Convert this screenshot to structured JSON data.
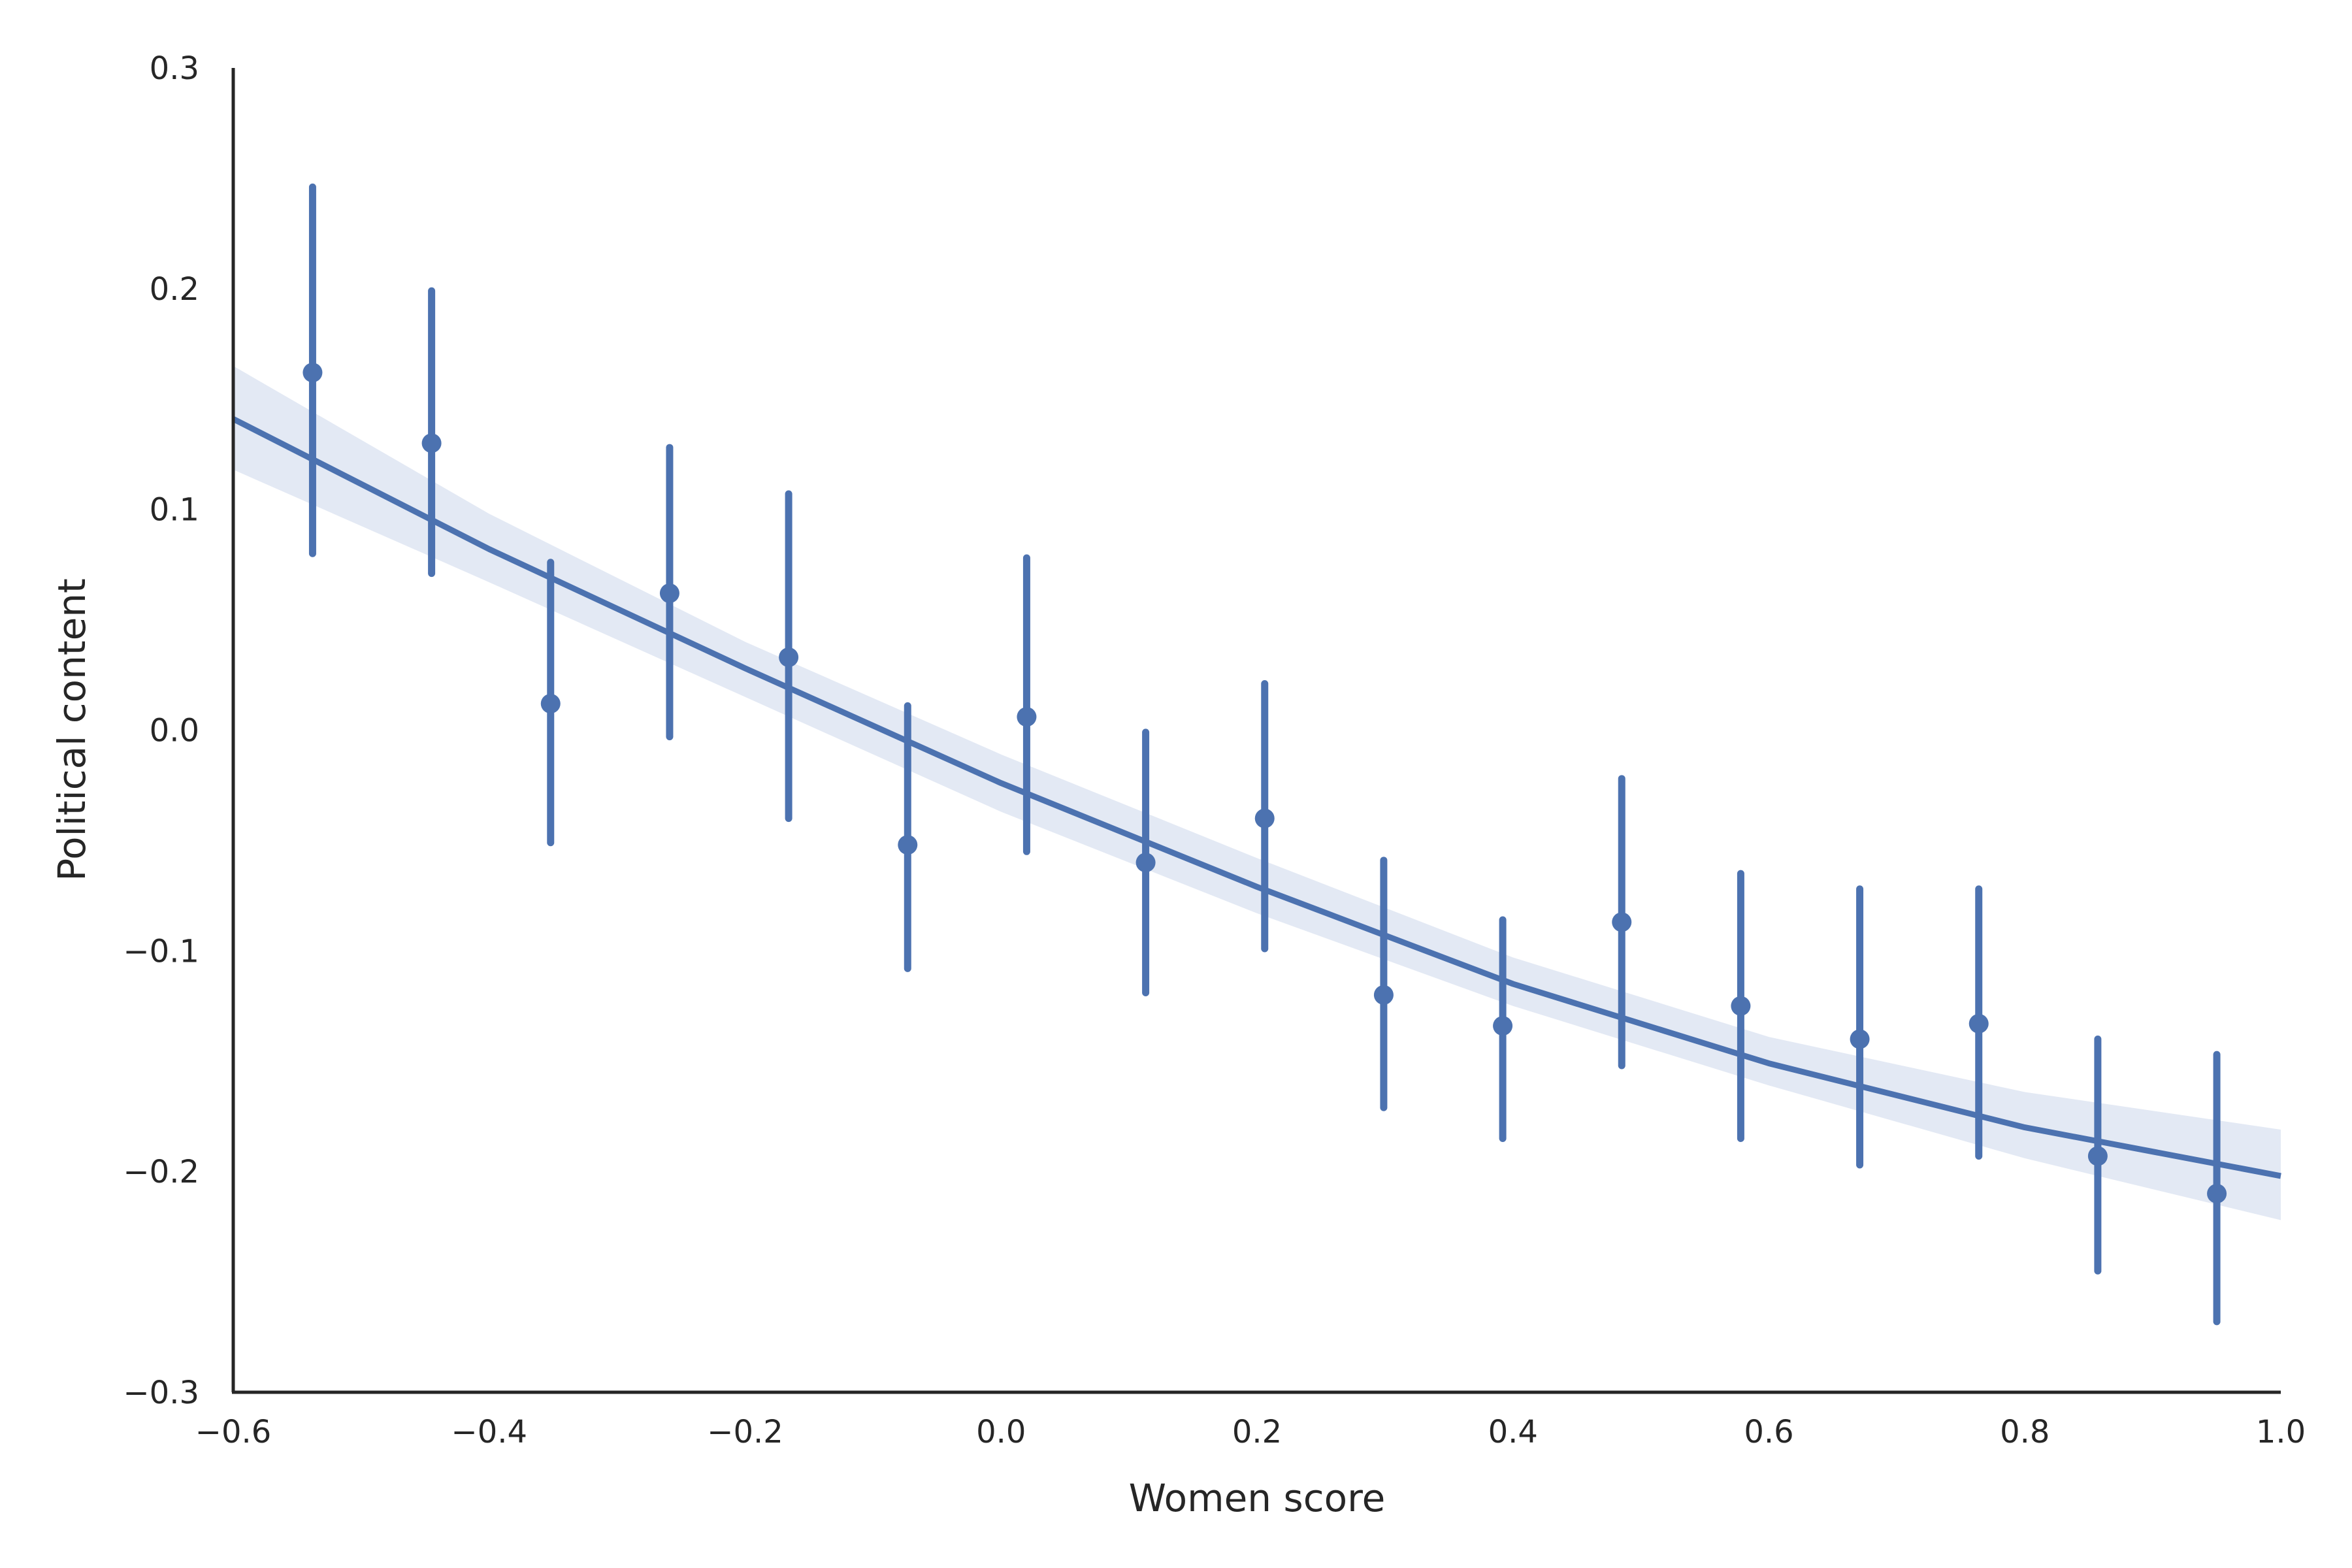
{
  "chart_data": {
    "type": "scatter",
    "xlabel": "Women score",
    "ylabel": "Political content",
    "xlim": [
      -0.6,
      1.0
    ],
    "ylim": [
      -0.3,
      0.3
    ],
    "xticks": [
      -0.6,
      -0.4,
      -0.2,
      0.0,
      0.2,
      0.4,
      0.6,
      0.8,
      1.0
    ],
    "yticks": [
      -0.3,
      -0.2,
      -0.1,
      0.0,
      0.1,
      0.2,
      0.3
    ],
    "xtick_labels": [
      "−0.6",
      "−0.4",
      "−0.2",
      "0.0",
      "0.2",
      "0.4",
      "0.6",
      "0.8",
      "1.0"
    ],
    "ytick_labels": [
      "−0.3",
      "−0.2",
      "−0.1",
      "0.0",
      "0.1",
      "0.2",
      "0.3"
    ],
    "grid": false,
    "colors": {
      "series": "#4c72b0",
      "band": "#e3e9f4",
      "axis": "#262626"
    },
    "points": [
      {
        "x": -0.538,
        "y": 0.162,
        "lo": 0.08,
        "hi": 0.246
      },
      {
        "x": -0.445,
        "y": 0.13,
        "lo": 0.071,
        "hi": 0.199
      },
      {
        "x": -0.352,
        "y": 0.012,
        "lo": -0.051,
        "hi": 0.076
      },
      {
        "x": -0.259,
        "y": 0.062,
        "lo": -0.003,
        "hi": 0.128
      },
      {
        "x": -0.166,
        "y": 0.033,
        "lo": -0.04,
        "hi": 0.107
      },
      {
        "x": -0.073,
        "y": -0.052,
        "lo": -0.108,
        "hi": 0.011
      },
      {
        "x": 0.02,
        "y": 0.006,
        "lo": -0.055,
        "hi": 0.078
      },
      {
        "x": 0.113,
        "y": -0.06,
        "lo": -0.119,
        "hi": -0.001
      },
      {
        "x": 0.206,
        "y": -0.04,
        "lo": -0.099,
        "hi": 0.021
      },
      {
        "x": 0.299,
        "y": -0.12,
        "lo": -0.171,
        "hi": -0.059
      },
      {
        "x": 0.392,
        "y": -0.134,
        "lo": -0.185,
        "hi": -0.086
      },
      {
        "x": 0.485,
        "y": -0.087,
        "lo": -0.152,
        "hi": -0.022
      },
      {
        "x": 0.578,
        "y": -0.125,
        "lo": -0.185,
        "hi": -0.065
      },
      {
        "x": 0.671,
        "y": -0.14,
        "lo": -0.197,
        "hi": -0.072
      },
      {
        "x": 0.764,
        "y": -0.133,
        "lo": -0.193,
        "hi": -0.072
      },
      {
        "x": 0.857,
        "y": -0.193,
        "lo": -0.245,
        "hi": -0.14
      },
      {
        "x": 0.95,
        "y": -0.21,
        "lo": -0.268,
        "hi": -0.147
      }
    ],
    "fit": {
      "x": [
        -0.6,
        -0.4,
        -0.2,
        0.0,
        0.2,
        0.4,
        0.6,
        0.8,
        1.0
      ],
      "y": [
        0.141,
        0.082,
        0.028,
        -0.024,
        -0.071,
        -0.115,
        -0.151,
        -0.18,
        -0.202
      ],
      "lo": [
        0.118,
        0.067,
        0.015,
        -0.037,
        -0.083,
        -0.125,
        -0.161,
        -0.194,
        -0.222
      ],
      "hi": [
        0.165,
        0.098,
        0.04,
        -0.011,
        -0.058,
        -0.103,
        -0.139,
        -0.164,
        -0.181
      ]
    }
  }
}
